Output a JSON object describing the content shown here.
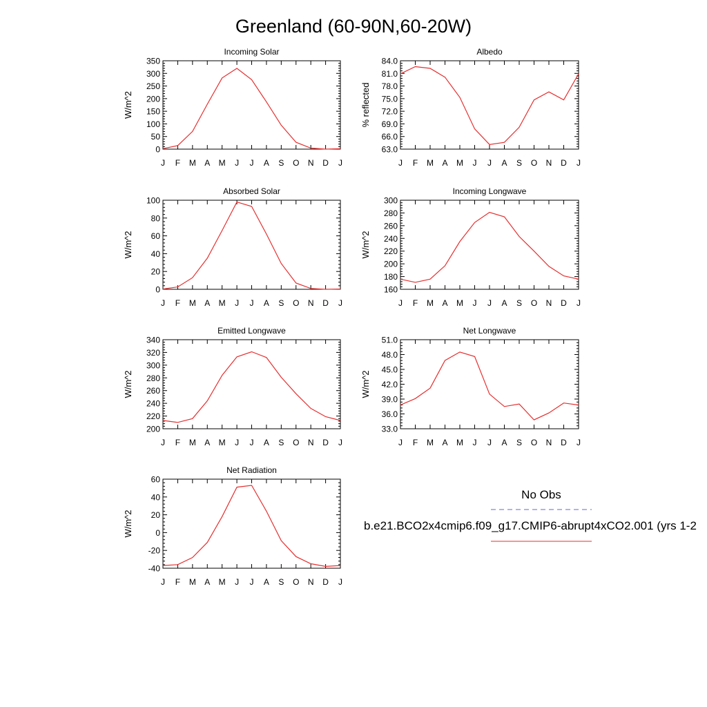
{
  "figure": {
    "title": "Greenland (60-90N,60-20W)",
    "legend": {
      "placement": "right-middle",
      "entries": [
        {
          "label": "No Obs",
          "color": "#6666dd",
          "style": "dashed"
        },
        {
          "label": "b.e21.BCO2x4cmip6.f09_g17.CMIP6-abrupt4xCO2.001 (yrs 1-2",
          "color": "#e62e2e",
          "style": "solid"
        }
      ]
    }
  },
  "month_labels": [
    "J",
    "F",
    "M",
    "A",
    "M",
    "J",
    "J",
    "A",
    "S",
    "O",
    "N",
    "D",
    "J"
  ],
  "chart_data": [
    {
      "type": "line",
      "title": "Incoming Solar",
      "ylabel": "W/m^2",
      "ylim": [
        0,
        350
      ],
      "yticks": [
        "0",
        "50",
        "100",
        "150",
        "200",
        "250",
        "300",
        "350"
      ],
      "series": [
        {
          "values": [
            2,
            14,
            70,
            178,
            282,
            320,
            275,
            187,
            95,
            27,
            4,
            0,
            2
          ]
        }
      ]
    },
    {
      "type": "line",
      "title": "Albedo",
      "ylabel": "% reflected",
      "ylim": [
        63,
        84
      ],
      "yticks": [
        "63.0",
        "66.0",
        "69.0",
        "72.0",
        "75.0",
        "78.0",
        "81.0",
        "84.0"
      ],
      "series": [
        {
          "values": [
            80.9,
            82.6,
            82.2,
            80.1,
            75.3,
            67.8,
            64.1,
            64.6,
            68.2,
            74.7,
            76.6,
            74.7,
            80.9
          ]
        }
      ]
    },
    {
      "type": "line",
      "title": "Absorbed Solar",
      "ylabel": "W/m^2",
      "ylim": [
        0,
        100
      ],
      "yticks": [
        "0",
        "20",
        "40",
        "60",
        "80",
        "100"
      ],
      "series": [
        {
          "values": [
            0.3,
            2.6,
            13,
            35,
            66,
            98,
            93,
            62,
            29,
            7,
            0.9,
            0,
            0.3
          ]
        }
      ]
    },
    {
      "type": "line",
      "title": "Incoming Longwave",
      "ylabel": "W/m^2",
      "ylim": [
        160,
        300
      ],
      "yticks": [
        "160",
        "180",
        "200",
        "220",
        "240",
        "260",
        "280",
        "300"
      ],
      "series": [
        {
          "values": [
            176,
            171,
            176,
            197,
            235,
            265,
            281,
            274,
            243,
            220,
            196,
            181,
            176
          ]
        }
      ]
    },
    {
      "type": "line",
      "title": "Emitted Longwave",
      "ylabel": "W/m^2",
      "ylim": [
        200,
        340
      ],
      "yticks": [
        "200",
        "220",
        "240",
        "260",
        "280",
        "300",
        "320",
        "340"
      ],
      "series": [
        {
          "values": [
            213,
            210,
            216,
            244,
            284,
            313,
            321,
            312,
            281,
            255,
            232,
            219,
            213
          ]
        }
      ]
    },
    {
      "type": "line",
      "title": "Net Longwave",
      "ylabel": "W/m^2",
      "ylim": [
        33,
        51
      ],
      "yticks": [
        "33.0",
        "36.0",
        "39.0",
        "42.0",
        "45.0",
        "48.0",
        "51.0"
      ],
      "series": [
        {
          "values": [
            37.8,
            39.1,
            41.2,
            46.8,
            48.5,
            47.6,
            40.0,
            37.5,
            38.0,
            34.8,
            36.2,
            38.2,
            37.8
          ]
        }
      ]
    },
    {
      "type": "line",
      "title": "Net Radiation",
      "ylabel": "W/m^2",
      "ylim": [
        -40,
        60
      ],
      "yticks": [
        "-40",
        "-20",
        "0",
        "20",
        "40",
        "60"
      ],
      "series": [
        {
          "values": [
            -37,
            -36,
            -28,
            -11,
            18,
            51,
            53,
            24,
            -9,
            -27,
            -35,
            -38,
            -37
          ]
        }
      ]
    }
  ]
}
